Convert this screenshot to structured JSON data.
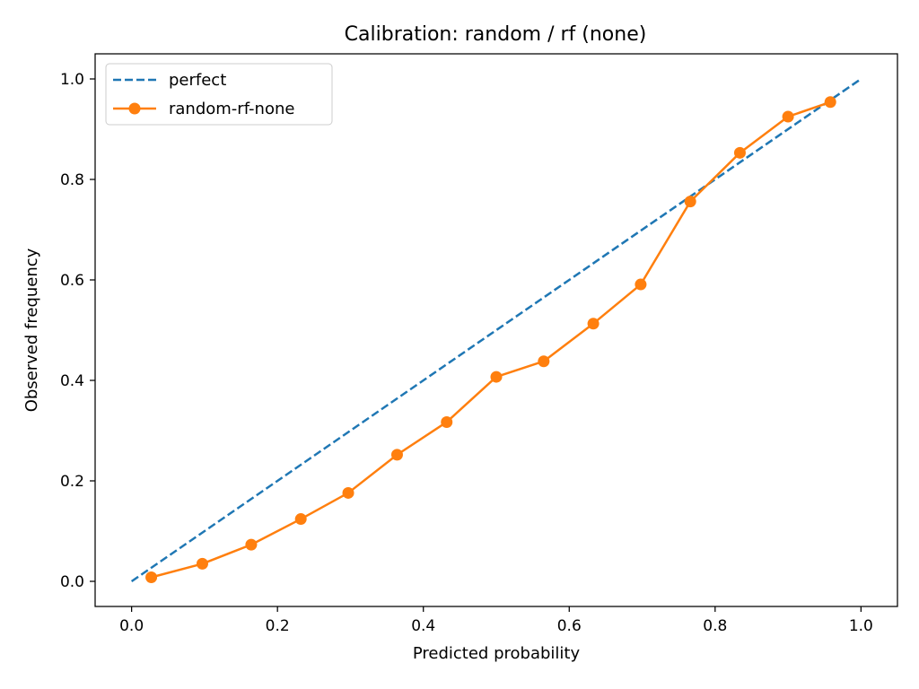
{
  "chart_data": {
    "type": "line",
    "title": "Calibration: random / rf (none)",
    "xlabel": "Predicted probability",
    "ylabel": "Observed frequency",
    "xlim": [
      -0.05,
      1.05
    ],
    "ylim": [
      -0.05,
      1.05
    ],
    "xticks": [
      0.0,
      0.2,
      0.4,
      0.6,
      0.8,
      1.0
    ],
    "yticks": [
      0.0,
      0.2,
      0.4,
      0.6,
      0.8,
      1.0
    ],
    "tick_labels_x": [
      "0.0",
      "0.2",
      "0.4",
      "0.6",
      "0.8",
      "1.0"
    ],
    "tick_labels_y": [
      "0.0",
      "0.2",
      "0.4",
      "0.6",
      "0.8",
      "1.0"
    ],
    "grid": false,
    "legend_position": "top-left",
    "series": [
      {
        "name": "perfect",
        "style": "dashed",
        "color": "#1f77b4",
        "x": [
          0.0,
          1.0
        ],
        "y": [
          0.0,
          1.0
        ]
      },
      {
        "name": "random-rf-none",
        "style": "solid-marker",
        "color": "#ff7f0e",
        "x": [
          0.027,
          0.097,
          0.164,
          0.232,
          0.297,
          0.364,
          0.432,
          0.5,
          0.565,
          0.633,
          0.698,
          0.766,
          0.834,
          0.9,
          0.958
        ],
        "y": [
          0.008,
          0.035,
          0.073,
          0.124,
          0.176,
          0.252,
          0.317,
          0.407,
          0.438,
          0.513,
          0.591,
          0.756,
          0.853,
          0.925,
          0.954
        ]
      }
    ]
  }
}
